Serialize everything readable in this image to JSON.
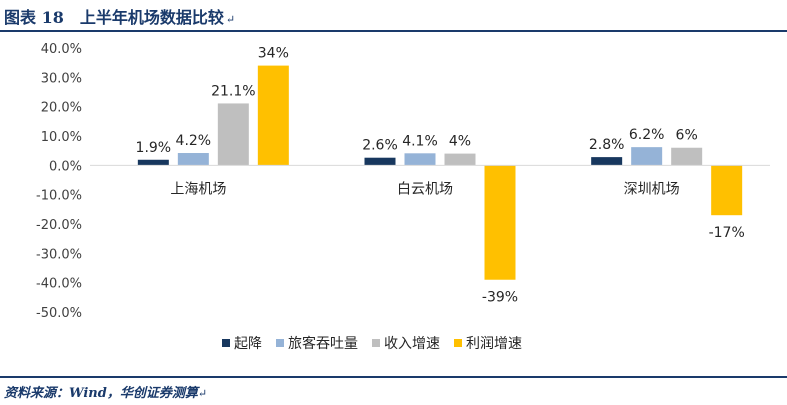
{
  "header": {
    "title": "图表 18　上半年机场数据比较",
    "return_mark": "↵"
  },
  "footer": {
    "source": "资料来源：Wind，华创证券测算",
    "return_mark": "↵"
  },
  "colors": {
    "takeoff_landing": "#17375e",
    "passenger_throughput": "#95b3d7",
    "revenue_growth": "#bfbfbf",
    "profit_growth": "#ffc000",
    "header_blue": "#1a3a6b"
  },
  "chart_data": {
    "type": "bar",
    "categories": [
      "上海机场",
      "白云机场",
      "深圳机场"
    ],
    "series": [
      {
        "name": "起降",
        "values": [
          1.9,
          2.6,
          2.8
        ],
        "labels": [
          "1.9%",
          "2.6%",
          "2.8%"
        ]
      },
      {
        "name": "旅客吞吐量",
        "values": [
          4.2,
          4.1,
          6.2
        ],
        "labels": [
          "4.2%",
          "4.1%",
          "6.2%"
        ]
      },
      {
        "name": "收入增速",
        "values": [
          21.1,
          4,
          6
        ],
        "labels": [
          "21.1%",
          "4%",
          "6%"
        ]
      },
      {
        "name": "利润增速",
        "values": [
          34,
          -39,
          -17
        ],
        "labels": [
          "34%",
          "-39%",
          "-17%"
        ]
      }
    ],
    "ylim": [
      -50,
      40
    ],
    "yticks": [
      40,
      30,
      20,
      10,
      0,
      -10,
      -20,
      -30,
      -40,
      -50
    ],
    "ytick_labels": [
      "40.0%",
      "30.0%",
      "20.0%",
      "10.0%",
      "0.0%",
      "-10.0%",
      "-20.0%",
      "-30.0%",
      "-40.0%",
      "-50.0%"
    ],
    "grid": false,
    "legend_position": "bottom"
  }
}
